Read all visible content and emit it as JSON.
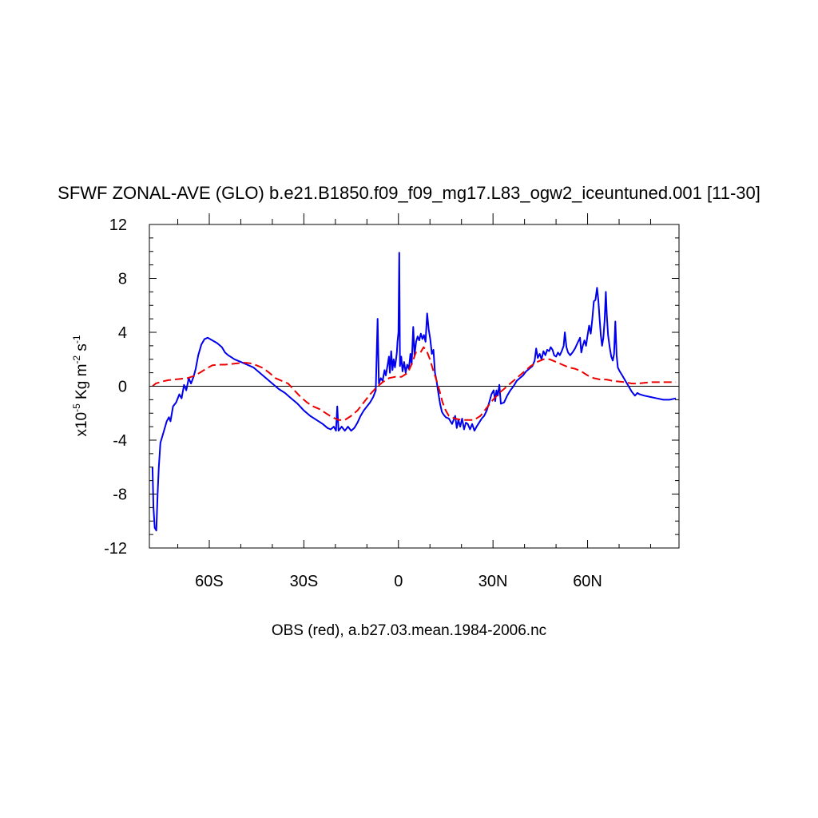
{
  "chart_data": {
    "type": "line",
    "title": "SFWF ZONAL-AVE (GLO) b.e21.B1850.f09_f09_mg17.L83_ogw2_iceuntuned.001 [11-30]",
    "caption": "OBS (red), a.b27.03.mean.1984-2006.nc",
    "ylabel": {
      "prefix": "x10",
      "exp1": "-5",
      "mid": " Kg m",
      "exp2": "-2",
      "mid2": " s",
      "exp3": "-1"
    },
    "xlim": [
      -79,
      89
    ],
    "ylim": [
      -12,
      12
    ],
    "x_ticks": [
      {
        "value": -60,
        "label": "60S"
      },
      {
        "value": -30,
        "label": "30S"
      },
      {
        "value": 0,
        "label": "0"
      },
      {
        "value": 30,
        "label": "30N"
      },
      {
        "value": 60,
        "label": "60N"
      }
    ],
    "y_ticks": [
      {
        "value": -12,
        "label": "-12"
      },
      {
        "value": -8,
        "label": "-8"
      },
      {
        "value": -4,
        "label": "-4"
      },
      {
        "value": 0,
        "label": "0"
      },
      {
        "value": 4,
        "label": "4"
      },
      {
        "value": 8,
        "label": "8"
      },
      {
        "value": 12,
        "label": "12"
      }
    ],
    "zero_line": true,
    "series": [
      {
        "color": "#0000ee",
        "style": "solid",
        "points": [
          [
            -78,
            -6
          ],
          [
            -77.7,
            -9
          ],
          [
            -77.3,
            -10.5
          ],
          [
            -76.8,
            -10.7
          ],
          [
            -76.4,
            -8
          ],
          [
            -76,
            -6
          ],
          [
            -75.5,
            -4.2
          ],
          [
            -74.5,
            -3.4
          ],
          [
            -73.5,
            -2.6
          ],
          [
            -72.8,
            -2.3
          ],
          [
            -72.3,
            -2.6
          ],
          [
            -71.5,
            -1.5
          ],
          [
            -70.5,
            -1.2
          ],
          [
            -69.5,
            -0.6
          ],
          [
            -68.8,
            -0.9
          ],
          [
            -68,
            0.1
          ],
          [
            -67.3,
            -0.3
          ],
          [
            -66.5,
            0.6
          ],
          [
            -65.8,
            0.2
          ],
          [
            -65,
            0.7
          ],
          [
            -64.3,
            1.3
          ],
          [
            -63.5,
            2.3
          ],
          [
            -62.5,
            3.1
          ],
          [
            -61.5,
            3.5
          ],
          [
            -60.5,
            3.6
          ],
          [
            -59,
            3.4
          ],
          [
            -57.5,
            3.2
          ],
          [
            -56,
            2.9
          ],
          [
            -55,
            2.5
          ],
          [
            -54,
            2.3
          ],
          [
            -52,
            2.0
          ],
          [
            -50,
            1.8
          ],
          [
            -48,
            1.6
          ],
          [
            -46,
            1.4
          ],
          [
            -44,
            1.0
          ],
          [
            -42,
            0.6
          ],
          [
            -40,
            0.2
          ],
          [
            -38,
            -0.2
          ],
          [
            -36,
            -0.5
          ],
          [
            -34,
            -0.9
          ],
          [
            -32,
            -1.3
          ],
          [
            -30,
            -1.8
          ],
          [
            -28,
            -2.2
          ],
          [
            -26,
            -2.5
          ],
          [
            -24,
            -2.8
          ],
          [
            -22.5,
            -3.1
          ],
          [
            -21.5,
            -3.2
          ],
          [
            -20.5,
            -3.0
          ],
          [
            -19.8,
            -3.3
          ],
          [
            -19.4,
            -1.5
          ],
          [
            -19,
            -3.3
          ],
          [
            -18,
            -3.0
          ],
          [
            -17,
            -3.3
          ],
          [
            -16,
            -3.0
          ],
          [
            -15,
            -3.3
          ],
          [
            -14,
            -3.1
          ],
          [
            -13,
            -2.7
          ],
          [
            -12,
            -2.2
          ],
          [
            -11,
            -1.8
          ],
          [
            -10,
            -1.5
          ],
          [
            -9,
            -1.2
          ],
          [
            -8,
            -0.8
          ],
          [
            -7.2,
            -0.3
          ],
          [
            -6.6,
            5.0
          ],
          [
            -6.2,
            0.2
          ],
          [
            -5.6,
            0.6
          ],
          [
            -5,
            0.4
          ],
          [
            -4.4,
            1.2
          ],
          [
            -4,
            0.8
          ],
          [
            -3.5,
            1.5
          ],
          [
            -3,
            2.2
          ],
          [
            -2.7,
            1.0
          ],
          [
            -2.3,
            2.6
          ],
          [
            -1.9,
            1.2
          ],
          [
            -1.5,
            2.0
          ],
          [
            -1.1,
            1.4
          ],
          [
            -0.8,
            1.9
          ],
          [
            -0.5,
            2.5
          ],
          [
            -0.3,
            3.3
          ],
          [
            0,
            4.0
          ],
          [
            0.25,
            9.9
          ],
          [
            0.5,
            1.5
          ],
          [
            0.9,
            2.2
          ],
          [
            1.3,
            1.1
          ],
          [
            1.8,
            1.8
          ],
          [
            2.3,
            1.0
          ],
          [
            2.8,
            1.6
          ],
          [
            3.3,
            1.3
          ],
          [
            3.8,
            2.4
          ],
          [
            4.2,
            1.6
          ],
          [
            4.7,
            4.4
          ],
          [
            5.1,
            2.3
          ],
          [
            5.6,
            3.3
          ],
          [
            6.1,
            3.7
          ],
          [
            6.6,
            3.4
          ],
          [
            7.1,
            3.9
          ],
          [
            7.6,
            3.5
          ],
          [
            8.1,
            3.8
          ],
          [
            8.6,
            3.3
          ],
          [
            9.1,
            5.4
          ],
          [
            9.6,
            4.2
          ],
          [
            10.1,
            3.5
          ],
          [
            10.6,
            2.4
          ],
          [
            11.1,
            2.7
          ],
          [
            11.6,
            1.0
          ],
          [
            12.1,
            0.4
          ],
          [
            12.6,
            -0.4
          ],
          [
            13.2,
            -1.3
          ],
          [
            13.8,
            -1.9
          ],
          [
            14.3,
            -2.1
          ],
          [
            15,
            -2.3
          ],
          [
            16,
            -2.4
          ],
          [
            17,
            -2.8
          ],
          [
            18,
            -2.2
          ],
          [
            18.5,
            -3.1
          ],
          [
            19,
            -2.5
          ],
          [
            19.6,
            -3.0
          ],
          [
            20.2,
            -2.4
          ],
          [
            20.8,
            -3.2
          ],
          [
            21.4,
            -2.7
          ],
          [
            22,
            -2.8
          ],
          [
            22.7,
            -3.2
          ],
          [
            23.4,
            -2.8
          ],
          [
            24.1,
            -3.3
          ],
          [
            24.8,
            -3.0
          ],
          [
            25.6,
            -2.7
          ],
          [
            26.4,
            -2.4
          ],
          [
            27.2,
            -2.2
          ],
          [
            28,
            -1.8
          ],
          [
            28.8,
            -1.2
          ],
          [
            29.5,
            -0.6
          ],
          [
            30.2,
            -0.3
          ],
          [
            30.7,
            -1.1
          ],
          [
            31.1,
            -0.3
          ],
          [
            31.5,
            -0.7
          ],
          [
            32,
            0.1
          ],
          [
            32.5,
            -1.3
          ],
          [
            33.5,
            -1.2
          ],
          [
            34.5,
            -0.7
          ],
          [
            35.5,
            -0.3
          ],
          [
            36.5,
            0
          ],
          [
            37.5,
            0.4
          ],
          [
            38.5,
            0.6
          ],
          [
            39.5,
            0.8
          ],
          [
            40.5,
            1.1
          ],
          [
            41.5,
            1.3
          ],
          [
            42.5,
            1.5
          ],
          [
            43.2,
            1.9
          ],
          [
            43.7,
            2.8
          ],
          [
            44.2,
            2.1
          ],
          [
            44.8,
            2.4
          ],
          [
            45.4,
            2.0
          ],
          [
            46,
            2.6
          ],
          [
            46.6,
            2.3
          ],
          [
            47.2,
            2.7
          ],
          [
            47.8,
            2.6
          ],
          [
            48.3,
            2.9
          ],
          [
            48.9,
            2.7
          ],
          [
            49.4,
            2.3
          ],
          [
            50,
            2.2
          ],
          [
            50.6,
            2.5
          ],
          [
            51.2,
            2.3
          ],
          [
            51.8,
            2.6
          ],
          [
            52.4,
            3.0
          ],
          [
            52.8,
            4.0
          ],
          [
            53.3,
            2.9
          ],
          [
            53.8,
            2.5
          ],
          [
            54.5,
            2.3
          ],
          [
            55.2,
            2.5
          ],
          [
            56,
            2.8
          ],
          [
            56.8,
            3.2
          ],
          [
            57.6,
            3.6
          ],
          [
            58,
            2.5
          ],
          [
            58.5,
            3.0
          ],
          [
            59,
            3.4
          ],
          [
            59.5,
            3.0
          ],
          [
            60,
            3.8
          ],
          [
            60.5,
            4.5
          ],
          [
            61,
            3.9
          ],
          [
            61.5,
            5.0
          ],
          [
            62,
            6.3
          ],
          [
            62.5,
            6.4
          ],
          [
            63,
            7.3
          ],
          [
            63.4,
            6.4
          ],
          [
            63.8,
            5.0
          ],
          [
            64.2,
            3.8
          ],
          [
            64.6,
            3.0
          ],
          [
            65,
            3.6
          ],
          [
            65.4,
            4.9
          ],
          [
            65.8,
            7.0
          ],
          [
            66.1,
            5.3
          ],
          [
            66.5,
            3.8
          ],
          [
            67,
            2.9
          ],
          [
            67.5,
            2.2
          ],
          [
            68,
            1.9
          ],
          [
            68.4,
            2.4
          ],
          [
            68.8,
            4.8
          ],
          [
            69.2,
            2.3
          ],
          [
            69.6,
            1.4
          ],
          [
            70.2,
            1.1
          ],
          [
            71,
            0.8
          ],
          [
            72,
            0.4
          ],
          [
            73,
            0
          ],
          [
            74,
            -0.4
          ],
          [
            75,
            -0.7
          ],
          [
            75.8,
            -0.5
          ],
          [
            76.5,
            -0.6
          ],
          [
            78,
            -0.7
          ],
          [
            80,
            -0.8
          ],
          [
            82,
            -0.9
          ],
          [
            84,
            -1.0
          ],
          [
            86,
            -1.0
          ],
          [
            88,
            -0.9
          ]
        ]
      },
      {
        "color": "#ee0000",
        "style": "dashed",
        "points": [
          [
            -78,
            0
          ],
          [
            -77,
            0.2
          ],
          [
            -75,
            0.35
          ],
          [
            -73,
            0.45
          ],
          [
            -71,
            0.5
          ],
          [
            -69,
            0.55
          ],
          [
            -67,
            0.6
          ],
          [
            -65,
            0.75
          ],
          [
            -63,
            1.0
          ],
          [
            -61,
            1.3
          ],
          [
            -59,
            1.55
          ],
          [
            -57,
            1.6
          ],
          [
            -55,
            1.6
          ],
          [
            -53,
            1.65
          ],
          [
            -51,
            1.7
          ],
          [
            -49,
            1.75
          ],
          [
            -47,
            1.7
          ],
          [
            -45,
            1.55
          ],
          [
            -43,
            1.35
          ],
          [
            -41,
            1.0
          ],
          [
            -39,
            0.6
          ],
          [
            -37,
            0.4
          ],
          [
            -35,
            0.2
          ],
          [
            -33,
            -0.3
          ],
          [
            -31,
            -0.8
          ],
          [
            -29,
            -1.2
          ],
          [
            -27,
            -1.5
          ],
          [
            -25,
            -1.7
          ],
          [
            -23,
            -2.0
          ],
          [
            -21,
            -2.3
          ],
          [
            -19,
            -2.5
          ],
          [
            -17,
            -2.5
          ],
          [
            -15,
            -2.2
          ],
          [
            -13,
            -1.8
          ],
          [
            -11,
            -1.2
          ],
          [
            -9,
            -0.6
          ],
          [
            -7,
            -0.1
          ],
          [
            -5,
            0.3
          ],
          [
            -3,
            0.6
          ],
          [
            -1,
            0.7
          ],
          [
            1,
            0.7
          ],
          [
            3,
            1.0
          ],
          [
            4.5,
            1.8
          ],
          [
            5.5,
            2.5
          ],
          [
            7,
            2.5
          ],
          [
            8,
            2.9
          ],
          [
            9,
            2.6
          ],
          [
            10,
            2.0
          ],
          [
            11,
            1.2
          ],
          [
            12,
            0.5
          ],
          [
            13,
            -0.3
          ],
          [
            14,
            -1.2
          ],
          [
            15,
            -1.8
          ],
          [
            16,
            -2.2
          ],
          [
            18,
            -2.4
          ],
          [
            20,
            -2.5
          ],
          [
            22,
            -2.5
          ],
          [
            24,
            -2.5
          ],
          [
            26,
            -2.2
          ],
          [
            28,
            -1.6
          ],
          [
            30,
            -1.0
          ],
          [
            32,
            -0.5
          ],
          [
            34,
            -0.1
          ],
          [
            36,
            0.3
          ],
          [
            38,
            0.7
          ],
          [
            40,
            1.1
          ],
          [
            42,
            1.5
          ],
          [
            44,
            1.8
          ],
          [
            46,
            2.0
          ],
          [
            48,
            2.0
          ],
          [
            50,
            1.8
          ],
          [
            52,
            1.6
          ],
          [
            54,
            1.4
          ],
          [
            56,
            1.3
          ],
          [
            58,
            1.1
          ],
          [
            60,
            0.8
          ],
          [
            62,
            0.6
          ],
          [
            64,
            0.5
          ],
          [
            66,
            0.5
          ],
          [
            68,
            0.4
          ],
          [
            70,
            0.35
          ],
          [
            72,
            0.3
          ],
          [
            74,
            0.2
          ],
          [
            76,
            0.2
          ],
          [
            78,
            0.25
          ],
          [
            80,
            0.3
          ],
          [
            82,
            0.3
          ],
          [
            84,
            0.3
          ],
          [
            86,
            0.3
          ],
          [
            88,
            0.3
          ]
        ]
      }
    ]
  }
}
